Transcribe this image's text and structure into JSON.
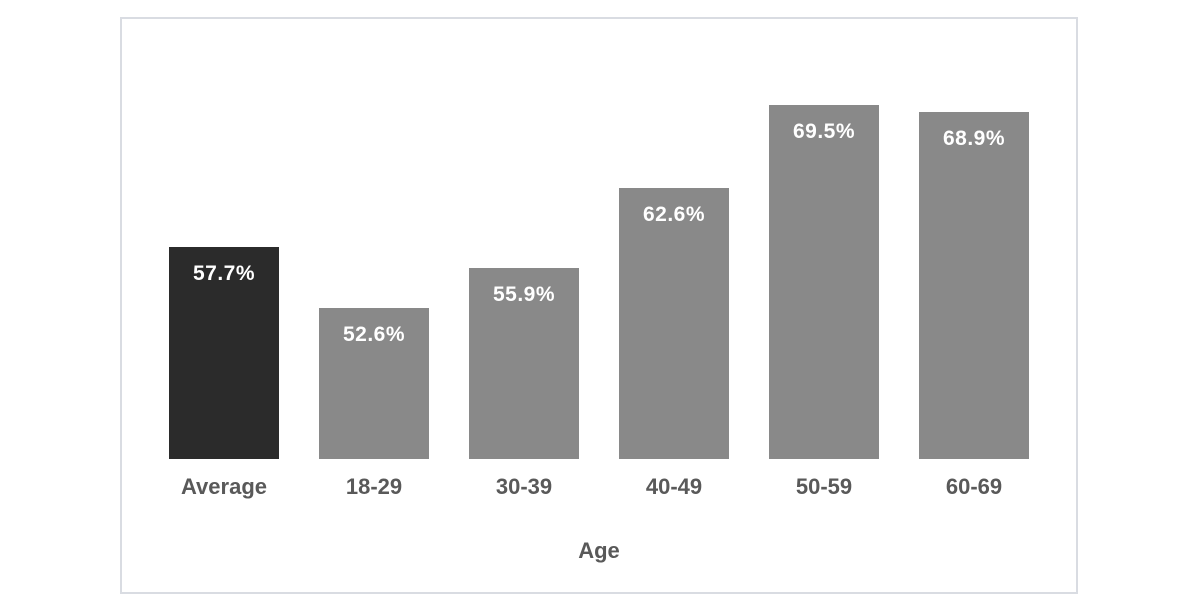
{
  "chart_data": {
    "type": "bar",
    "categories": [
      "Average",
      "18-29",
      "30-39",
      "40-49",
      "50-59",
      "60-69"
    ],
    "values": [
      57.7,
      52.6,
      55.9,
      62.6,
      69.5,
      68.9
    ],
    "data_labels": [
      "57.7%",
      "52.6%",
      "55.9%",
      "62.6%",
      "69.5%",
      "68.9%"
    ],
    "title": "",
    "xlabel": "Age",
    "ylabel": "",
    "ylim": [
      40,
      75
    ],
    "grid": false,
    "legend": "none",
    "bar_colors": [
      "#2b2b2b",
      "#898989",
      "#898989",
      "#898989",
      "#898989",
      "#898989"
    ],
    "data_label_color": "#ffffff",
    "axis_text_color": "#595959",
    "frame_border_color": "#d9dce2",
    "background_color": "#ffffff"
  }
}
